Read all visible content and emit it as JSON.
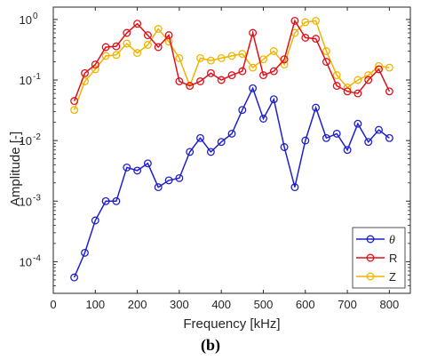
{
  "chart_data": {
    "type": "line",
    "xlabel": "Frequency [kHz]",
    "ylabel": "Amplitude [-]",
    "yscale": "log",
    "xlim": [
      0,
      850
    ],
    "ylim": [
      3e-05,
      1.6
    ],
    "xticks": [
      0,
      100,
      200,
      300,
      400,
      500,
      600,
      700,
      800
    ],
    "yticks": [
      {
        "value": 0.0001,
        "base": "10",
        "exp": "-4"
      },
      {
        "value": 0.001,
        "base": "10",
        "exp": "-3"
      },
      {
        "value": 0.01,
        "base": "10",
        "exp": "-2"
      },
      {
        "value": 0.1,
        "base": "10",
        "exp": "-1"
      },
      {
        "value": 1,
        "base": "10",
        "exp": "0"
      }
    ],
    "grid": false,
    "legend_position": "bottom-right",
    "x": [
      50,
      75,
      100,
      125,
      150,
      175,
      200,
      225,
      250,
      275,
      300,
      325,
      350,
      375,
      400,
      425,
      450,
      475,
      500,
      525,
      550,
      575,
      600,
      625,
      650,
      675,
      700,
      725,
      750,
      775,
      800
    ],
    "series": [
      {
        "name": "θ",
        "color": "#1f1fcc",
        "values": [
          5.5e-05,
          0.00014,
          0.00048,
          0.001,
          0.001,
          0.0036,
          0.0032,
          0.0042,
          0.0017,
          0.0022,
          0.0024,
          0.0065,
          0.011,
          0.0065,
          0.0095,
          0.013,
          0.032,
          0.073,
          0.023,
          0.048,
          0.0078,
          0.0017,
          0.01,
          0.035,
          0.011,
          0.013,
          0.007,
          0.019,
          0.0095,
          0.015,
          0.011
        ]
      },
      {
        "name": "R",
        "color": "#e0101a",
        "values": [
          0.045,
          0.13,
          0.18,
          0.35,
          0.36,
          0.6,
          0.85,
          0.55,
          0.35,
          0.55,
          0.095,
          0.08,
          0.095,
          0.13,
          0.1,
          0.12,
          0.14,
          0.6,
          0.12,
          0.14,
          0.22,
          0.95,
          0.5,
          0.48,
          0.2,
          0.08,
          0.065,
          0.06,
          0.1,
          0.15,
          0.065
        ]
      },
      {
        "name": "Z",
        "color": "#f0b400",
        "values": [
          0.032,
          0.095,
          0.15,
          0.25,
          0.26,
          0.4,
          0.28,
          0.38,
          0.7,
          0.43,
          0.23,
          0.08,
          0.23,
          0.21,
          0.23,
          0.25,
          0.27,
          0.16,
          0.22,
          0.3,
          0.18,
          0.6,
          0.9,
          0.95,
          0.3,
          0.12,
          0.075,
          0.1,
          0.12,
          0.17,
          0.16
        ]
      }
    ]
  },
  "caption": "(b)"
}
